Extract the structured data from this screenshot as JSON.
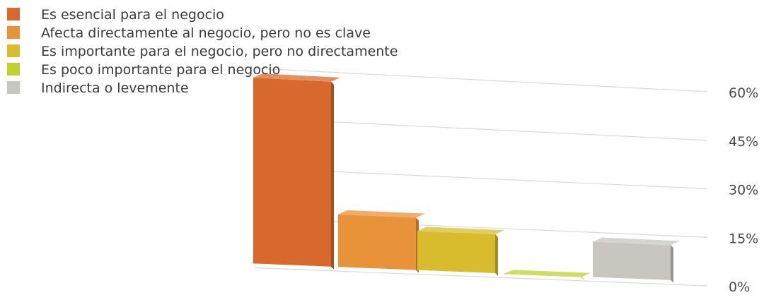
{
  "chart_data": {
    "type": "bar",
    "title": "",
    "xlabel": "",
    "ylabel": "",
    "ylim": [
      0,
      60
    ],
    "y_ticks": [
      "0%",
      "15%",
      "30%",
      "45%",
      "60%"
    ],
    "y_tick_values": [
      0,
      15,
      30,
      45,
      60
    ],
    "grid": true,
    "legend_position": "top-left",
    "series": [
      {
        "name": "Es esencial para el negocio",
        "value": 58,
        "color": "#D8692E"
      },
      {
        "name": "Afecta directamente al negocio, pero no es clave",
        "value": 18,
        "color": "#E8923A"
      },
      {
        "name": "Es importante para el negocio, pero no directamente",
        "value": 14,
        "color": "#D8BC2E"
      },
      {
        "name": "Es poco importante para el negocio",
        "value": 2,
        "color": "#BFD22C"
      },
      {
        "name": "Indirecta o levemente",
        "value": 13,
        "color": "#C9C5BF"
      }
    ]
  }
}
